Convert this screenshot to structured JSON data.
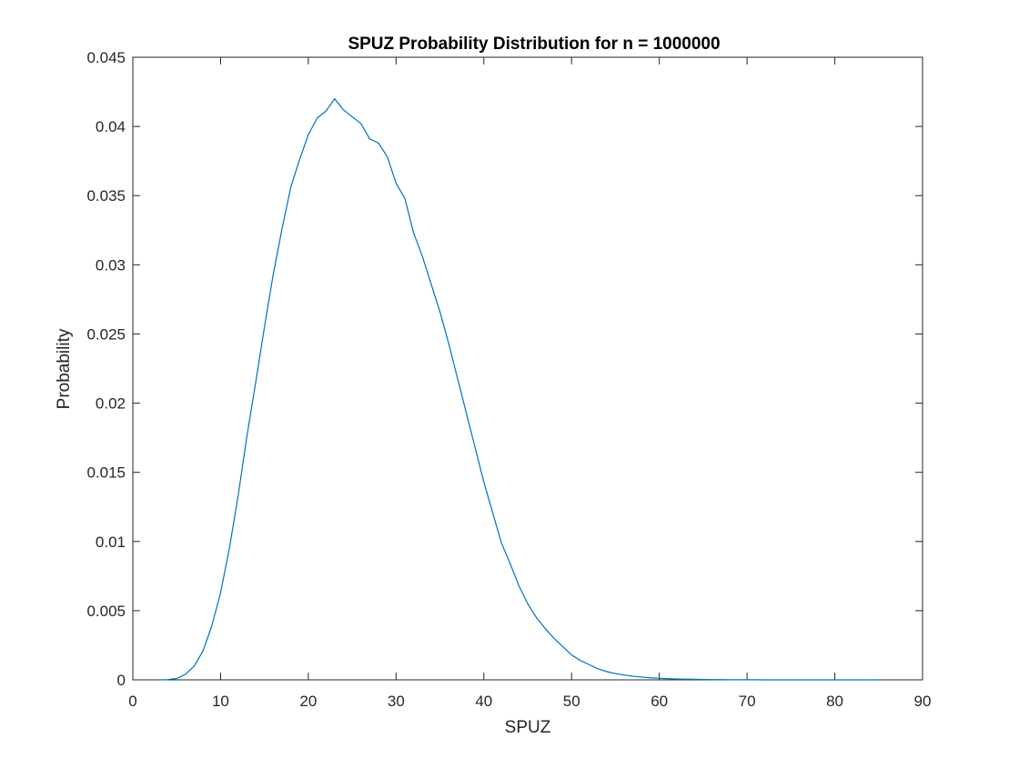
{
  "chart_data": {
    "type": "line",
    "title": "SPUZ Probability Distribution for n = 1000000",
    "xlabel": "SPUZ",
    "ylabel": "Probability",
    "xlim": [
      0,
      90
    ],
    "ylim": [
      0,
      0.045
    ],
    "xticks": [
      0,
      10,
      20,
      30,
      40,
      50,
      60,
      70,
      80,
      90
    ],
    "xtick_labels": [
      "0",
      "10",
      "20",
      "30",
      "40",
      "50",
      "60",
      "70",
      "80",
      "90"
    ],
    "yticks": [
      0,
      0.005,
      0.01,
      0.015,
      0.02,
      0.025,
      0.03,
      0.035,
      0.04,
      0.045
    ],
    "ytick_labels": [
      "0",
      "0.005",
      "0.01",
      "0.015",
      "0.02",
      "0.025",
      "0.03",
      "0.035",
      "0.04",
      "0.045"
    ],
    "grid": false,
    "box": true,
    "series": [
      {
        "color": "#0072BD",
        "x": [
          3,
          4,
          5,
          6,
          7,
          8,
          9,
          10,
          11,
          12,
          13,
          14,
          15,
          16,
          17,
          18,
          19,
          20,
          21,
          22,
          23,
          24,
          25,
          26,
          27,
          28,
          29,
          30,
          31,
          32,
          33,
          34,
          35,
          36,
          37,
          38,
          39,
          40,
          41,
          42,
          43,
          44,
          45,
          46,
          47,
          48,
          49,
          50,
          51,
          52,
          53,
          54,
          55,
          56,
          57,
          58,
          59,
          60,
          61,
          62,
          63,
          64,
          65,
          66,
          67,
          68,
          69,
          70,
          71,
          72,
          73,
          74,
          75,
          76,
          77,
          78,
          79,
          80,
          81,
          82,
          83,
          84,
          85
        ],
        "y": [
          0,
          2e-05,
          0.0001,
          0.0004,
          0.001,
          0.0021,
          0.0039,
          0.0063,
          0.0095,
          0.0133,
          0.0176,
          0.0215,
          0.0255,
          0.0293,
          0.0326,
          0.0356,
          0.0376,
          0.0394,
          0.0406,
          0.0411,
          0.042,
          0.0412,
          0.0407,
          0.0402,
          0.0391,
          0.0388,
          0.0378,
          0.0359,
          0.0348,
          0.0323,
          0.0306,
          0.0286,
          0.0266,
          0.0243,
          0.0218,
          0.0193,
          0.0168,
          0.0143,
          0.0121,
          0.0099,
          0.0084,
          0.0068,
          0.0055,
          0.0045,
          0.0037,
          0.003,
          0.0024,
          0.0018,
          0.0014,
          0.0011,
          0.0008,
          0.0006,
          0.00045,
          0.00035,
          0.00026,
          0.0002,
          0.00015,
          0.00011,
          8e-05,
          6e-05,
          5e-05,
          4e-05,
          3e-05,
          2e-05,
          2e-05,
          1e-05,
          1e-05,
          1e-05,
          1e-05,
          0,
          0,
          0,
          0,
          0,
          0,
          0,
          0,
          0,
          0,
          0,
          0,
          0,
          0
        ]
      }
    ]
  }
}
